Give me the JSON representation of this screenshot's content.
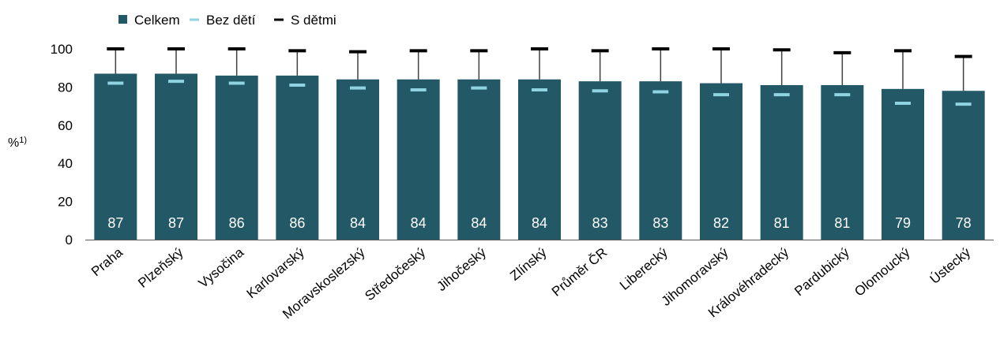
{
  "chart_data": {
    "type": "bar",
    "ylabel_main": "%",
    "ylabel_sup": "1)",
    "ylim": [
      0,
      100
    ],
    "yticks": [
      "0",
      "20",
      "40",
      "60",
      "80",
      "100"
    ],
    "grid": false,
    "legend_position": "top-left",
    "categories": [
      "Praha",
      "Plzeňský",
      "Vysočina",
      "Karlovarský",
      "Moravskoslezský",
      "Středočeský",
      "Jihočeský",
      "Zlínský",
      "Průměr ČR",
      "Liberecký",
      "Jihomoravský",
      "Královéhradecký",
      "Pardubický",
      "Olomoucký",
      "Ústecký"
    ],
    "series": [
      {
        "name": "Celkem",
        "color": "#235866",
        "marker": "bar",
        "values": [
          87,
          87,
          86,
          86,
          84,
          84,
          84,
          84,
          83,
          83,
          82,
          81,
          81,
          79,
          78
        ],
        "data_labels": [
          "87",
          "87",
          "86",
          "86",
          "84",
          "84",
          "84",
          "84",
          "83",
          "83",
          "82",
          "81",
          "81",
          "79",
          "78"
        ]
      },
      {
        "name": "Bez dětí",
        "color": "#8fd4e0",
        "marker": "dash",
        "values": [
          82,
          83,
          82,
          81,
          79.5,
          78.5,
          79.5,
          78.5,
          78,
          77.5,
          76,
          76,
          76,
          71.5,
          71
        ]
      },
      {
        "name": "S dětmi",
        "color": "#000000",
        "marker": "dash",
        "values": [
          100,
          100,
          100,
          99,
          98.5,
          99,
          99,
          100,
          99,
          100,
          100,
          99.5,
          98,
          99,
          96
        ]
      }
    ]
  }
}
